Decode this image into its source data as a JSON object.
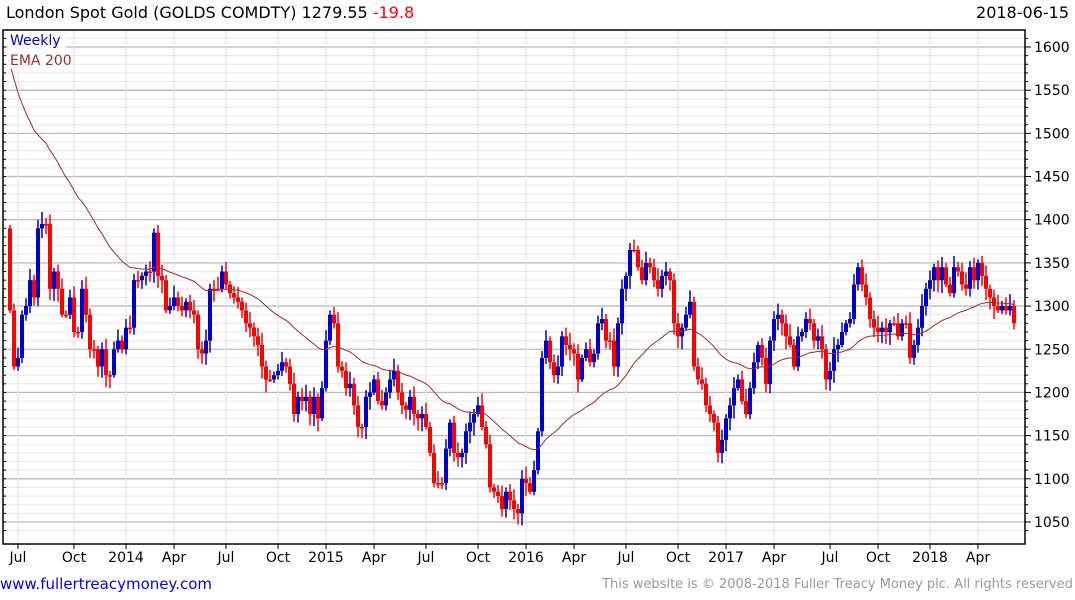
{
  "header": {
    "title": "London Spot Gold (GOLDS COMDTY) 1279.55",
    "change": "-19.8",
    "date": "2018-06-15"
  },
  "footer": {
    "link": "www.fullertreacymoney.com",
    "copyright": "This website is © 2008-2018 Fuller Treacy Money plc. All rights reserved"
  },
  "colors": {
    "up": "#0000cc",
    "down": "#ff0000",
    "ema": "#a52a2a",
    "legend_weekly": "#0000cc"
  },
  "chart_data": {
    "type": "candlestick",
    "title": "London Spot Gold (GOLDS COMDTY)",
    "legend": [
      "Weekly",
      "EMA 200"
    ],
    "legend_placement": "top-left",
    "ylim": [
      1030,
      1620
    ],
    "yticks": [
      1050,
      1100,
      1150,
      1200,
      1250,
      1300,
      1350,
      1400,
      1450,
      1500,
      1550,
      1600
    ],
    "xticks": [
      "Jul",
      "Oct",
      "2014",
      "Apr",
      "Jul",
      "Oct",
      "2015",
      "Apr",
      "Jul",
      "Oct",
      "2016",
      "Apr",
      "Jul",
      "Oct",
      "2017",
      "Apr",
      "Jul",
      "Oct",
      "2018",
      "Apr"
    ],
    "xtick_week_index": [
      2,
      16,
      29,
      41,
      54,
      67,
      79,
      91,
      104,
      117,
      129,
      141,
      154,
      167,
      179,
      191,
      205,
      217,
      230,
      242
    ],
    "grid": true,
    "first_open": 1390,
    "ema_initial": 1580,
    "ema_period_weeks": 40,
    "weekly_close": [
      1295,
      1230,
      1240,
      1290,
      1300,
      1330,
      1310,
      1390,
      1395,
      1395,
      1320,
      1340,
      1320,
      1290,
      1290,
      1310,
      1270,
      1270,
      1320,
      1290,
      1250,
      1250,
      1230,
      1250,
      1220,
      1220,
      1250,
      1260,
      1250,
      1275,
      1275,
      1330,
      1330,
      1335,
      1340,
      1340,
      1385,
      1335,
      1330,
      1295,
      1300,
      1310,
      1300,
      1295,
      1305,
      1295,
      1290,
      1250,
      1245,
      1260,
      1320,
      1320,
      1320,
      1340,
      1325,
      1315,
      1310,
      1305,
      1295,
      1280,
      1275,
      1265,
      1255,
      1230,
      1215,
      1215,
      1220,
      1225,
      1235,
      1230,
      1210,
      1175,
      1195,
      1190,
      1195,
      1175,
      1195,
      1170,
      1205,
      1260,
      1290,
      1280,
      1230,
      1225,
      1205,
      1210,
      1185,
      1160,
      1160,
      1195,
      1200,
      1215,
      1190,
      1185,
      1200,
      1215,
      1225,
      1200,
      1185,
      1180,
      1195,
      1175,
      1170,
      1175,
      1160,
      1130,
      1095,
      1095,
      1095,
      1135,
      1165,
      1130,
      1125,
      1130,
      1155,
      1165,
      1175,
      1185,
      1160,
      1140,
      1090,
      1085,
      1080,
      1065,
      1085,
      1075,
      1065,
      1060,
      1100,
      1095,
      1085,
      1110,
      1155,
      1240,
      1260,
      1235,
      1220,
      1230,
      1265,
      1255,
      1250,
      1245,
      1215,
      1240,
      1250,
      1235,
      1245,
      1280,
      1285,
      1260,
      1260,
      1230,
      1280,
      1320,
      1335,
      1365,
      1365,
      1345,
      1330,
      1350,
      1345,
      1330,
      1320,
      1335,
      1340,
      1330,
      1280,
      1265,
      1275,
      1290,
      1305,
      1230,
      1215,
      1210,
      1185,
      1175,
      1165,
      1130,
      1145,
      1170,
      1185,
      1205,
      1215,
      1190,
      1175,
      1205,
      1235,
      1255,
      1240,
      1210,
      1260,
      1285,
      1290,
      1280,
      1265,
      1255,
      1230,
      1265,
      1270,
      1285,
      1280,
      1260,
      1265,
      1250,
      1215,
      1225,
      1250,
      1255,
      1270,
      1280,
      1285,
      1325,
      1345,
      1325,
      1310,
      1285,
      1275,
      1270,
      1275,
      1270,
      1280,
      1280,
      1265,
      1280,
      1280,
      1240,
      1255,
      1275,
      1300,
      1320,
      1330,
      1345,
      1330,
      1345,
      1325,
      1315,
      1345,
      1340,
      1325,
      1320,
      1345,
      1330,
      1350,
      1335,
      1320,
      1310,
      1300,
      1295,
      1300,
      1295,
      1300,
      1280
    ]
  }
}
